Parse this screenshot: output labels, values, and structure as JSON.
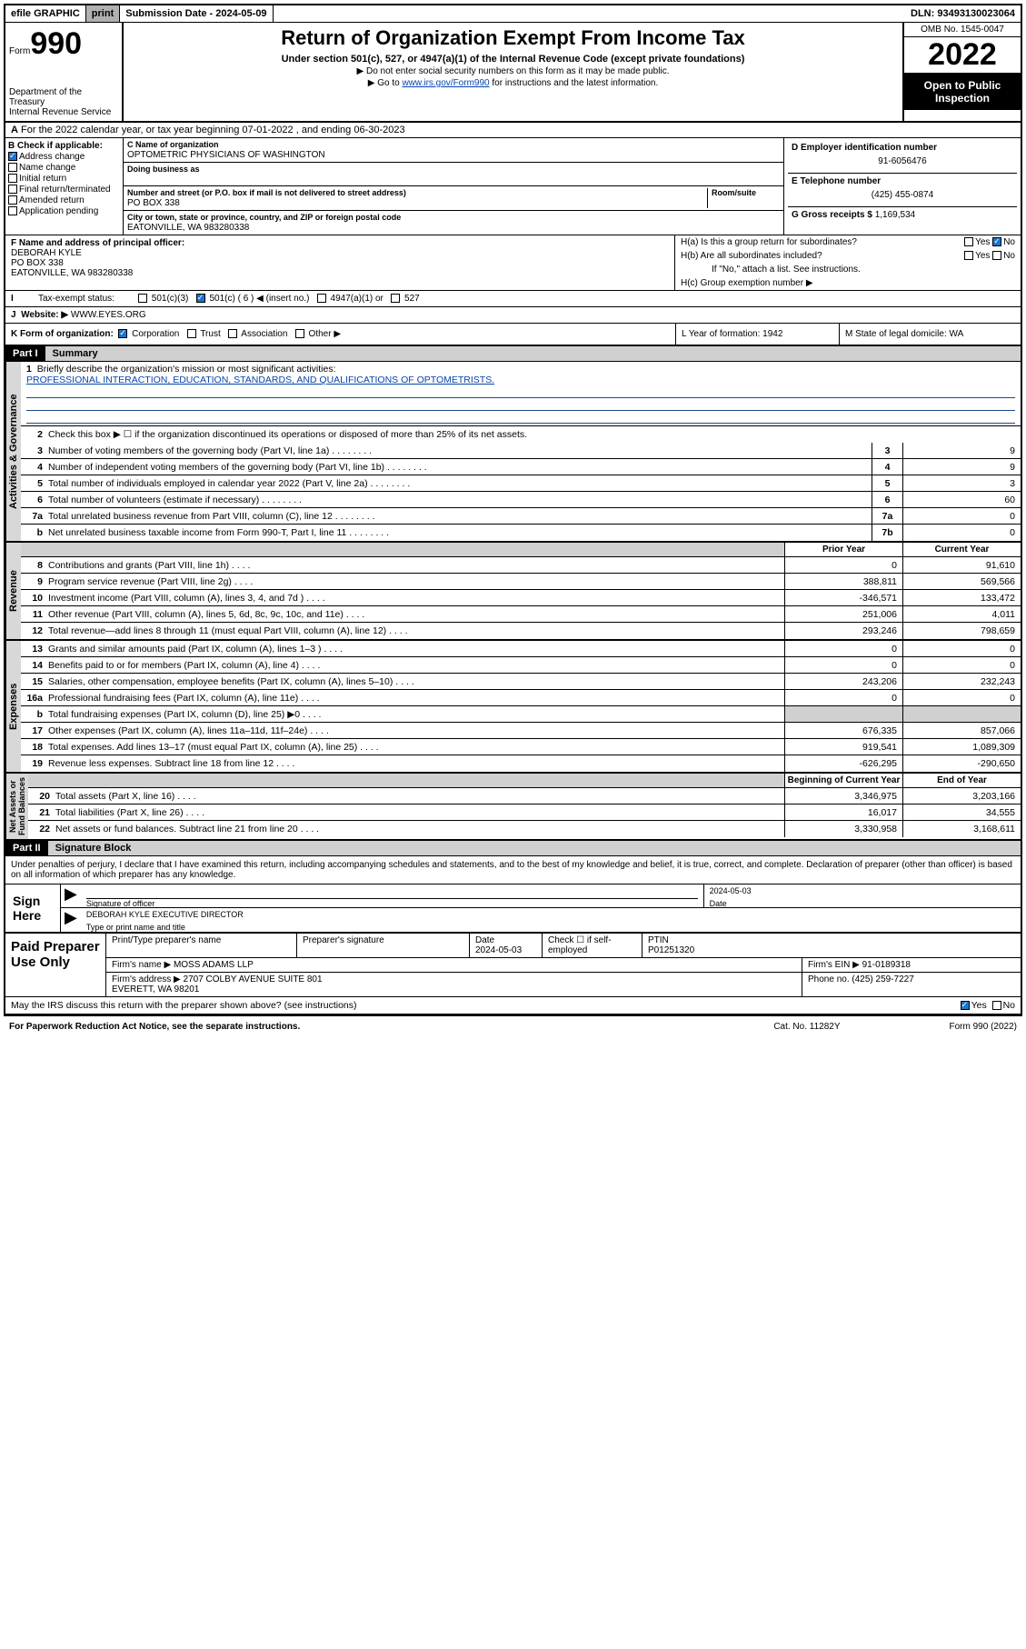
{
  "topbar": {
    "efile": "efile GRAPHIC",
    "print": "print",
    "subdate_label": "Submission Date - ",
    "subdate": "2024-05-09",
    "dln_label": "DLN: ",
    "dln": "93493130023064"
  },
  "header": {
    "form_label": "Form",
    "form_num": "990",
    "dept": "Department of the Treasury\nInternal Revenue Service",
    "title": "Return of Organization Exempt From Income Tax",
    "subtitle": "Under section 501(c), 527, or 4947(a)(1) of the Internal Revenue Code (except private foundations)",
    "instr1": "▶ Do not enter social security numbers on this form as it may be made public.",
    "instr2_pre": "▶ Go to ",
    "instr2_link": "www.irs.gov/Form990",
    "instr2_post": " for instructions and the latest information.",
    "omb": "OMB No. 1545-0047",
    "year": "2022",
    "open_pub": "Open to Public Inspection"
  },
  "rowA": "For the 2022 calendar year, or tax year beginning 07-01-2022    , and ending 06-30-2023",
  "boxB": {
    "hdr": "B Check if applicable:",
    "items": [
      "Address change",
      "Name change",
      "Initial return",
      "Final return/terminated",
      "Amended return",
      "Application pending"
    ],
    "checked_idx": 0
  },
  "boxC": {
    "name_lbl": "C Name of organization",
    "name": "OPTOMETRIC PHYSICIANS OF WASHINGTON",
    "dba_lbl": "Doing business as",
    "dba": "",
    "addr_lbl": "Number and street (or P.O. box if mail is not delivered to street address)",
    "room_lbl": "Room/suite",
    "addr": "PO BOX 338",
    "city_lbl": "City or town, state or province, country, and ZIP or foreign postal code",
    "city": "EATONVILLE, WA  983280338"
  },
  "boxD": {
    "ein_lbl": "D Employer identification number",
    "ein": "91-6056476",
    "phone_lbl": "E Telephone number",
    "phone": "(425) 455-0874",
    "gross_lbl": "G Gross receipts $ ",
    "gross": "1,169,534"
  },
  "boxF": {
    "lbl": "F  Name and address of principal officer:",
    "name": "DEBORAH KYLE",
    "addr1": "PO BOX 338",
    "addr2": "EATONVILLE, WA  983280338"
  },
  "boxH": {
    "ha": "H(a)  Is this a group return for subordinates?",
    "hb": "H(b)  Are all subordinates included?",
    "hb_note": "If \"No,\" attach a list. See instructions.",
    "hc": "H(c)  Group exemption number ▶",
    "yes": "Yes",
    "no": "No"
  },
  "rowI": {
    "lbl": "Tax-exempt status:",
    "opts": [
      "501(c)(3)",
      "501(c) ( 6 ) ◀ (insert no.)",
      "4947(a)(1) or",
      "527"
    ],
    "checked_idx": 1
  },
  "rowJ": {
    "lbl": "Website: ▶",
    "val": "WWW.EYES.ORG"
  },
  "rowK": {
    "lbl": "K Form of organization:",
    "opts": [
      "Corporation",
      "Trust",
      "Association",
      "Other ▶"
    ],
    "checked_idx": 0,
    "L": "L Year of formation: 1942",
    "M": "M State of legal domicile: WA"
  },
  "part1": {
    "hdr": "Part I",
    "title": "Summary",
    "line1_lbl": "Briefly describe the organization's mission or most significant activities:",
    "line1_val": "PROFESSIONAL INTERACTION, EDUCATION, STANDARDS, AND QUALIFICATIONS OF OPTOMETRISTS.",
    "line2": "Check this box ▶ ☐  if the organization discontinued its operations or disposed of more than 25% of its net assets.",
    "gov_lines": [
      {
        "n": "3",
        "d": "Number of voting members of the governing body (Part VI, line 1a)",
        "b": "3",
        "v": "9"
      },
      {
        "n": "4",
        "d": "Number of independent voting members of the governing body (Part VI, line 1b)",
        "b": "4",
        "v": "9"
      },
      {
        "n": "5",
        "d": "Total number of individuals employed in calendar year 2022 (Part V, line 2a)",
        "b": "5",
        "v": "3"
      },
      {
        "n": "6",
        "d": "Total number of volunteers (estimate if necessary)",
        "b": "6",
        "v": "60"
      },
      {
        "n": "7a",
        "d": "Total unrelated business revenue from Part VIII, column (C), line 12",
        "b": "7a",
        "v": "0"
      },
      {
        "n": "b",
        "d": "Net unrelated business taxable income from Form 990-T, Part I, line 11",
        "b": "7b",
        "v": "0"
      }
    ],
    "col_hdrs": {
      "prior": "Prior Year",
      "current": "Current Year"
    },
    "rev_lines": [
      {
        "n": "8",
        "d": "Contributions and grants (Part VIII, line 1h)",
        "p": "0",
        "c": "91,610"
      },
      {
        "n": "9",
        "d": "Program service revenue (Part VIII, line 2g)",
        "p": "388,811",
        "c": "569,566"
      },
      {
        "n": "10",
        "d": "Investment income (Part VIII, column (A), lines 3, 4, and 7d )",
        "p": "-346,571",
        "c": "133,472"
      },
      {
        "n": "11",
        "d": "Other revenue (Part VIII, column (A), lines 5, 6d, 8c, 9c, 10c, and 11e)",
        "p": "251,006",
        "c": "4,011"
      },
      {
        "n": "12",
        "d": "Total revenue—add lines 8 through 11 (must equal Part VIII, column (A), line 12)",
        "p": "293,246",
        "c": "798,659"
      }
    ],
    "exp_lines": [
      {
        "n": "13",
        "d": "Grants and similar amounts paid (Part IX, column (A), lines 1–3 )",
        "p": "0",
        "c": "0"
      },
      {
        "n": "14",
        "d": "Benefits paid to or for members (Part IX, column (A), line 4)",
        "p": "0",
        "c": "0"
      },
      {
        "n": "15",
        "d": "Salaries, other compensation, employee benefits (Part IX, column (A), lines 5–10)",
        "p": "243,206",
        "c": "232,243"
      },
      {
        "n": "16a",
        "d": "Professional fundraising fees (Part IX, column (A), line 11e)",
        "p": "0",
        "c": "0"
      },
      {
        "n": "b",
        "d": "Total fundraising expenses (Part IX, column (D), line 25) ▶0",
        "p": "",
        "c": "",
        "shaded": true
      },
      {
        "n": "17",
        "d": "Other expenses (Part IX, column (A), lines 11a–11d, 11f–24e)",
        "p": "676,335",
        "c": "857,066"
      },
      {
        "n": "18",
        "d": "Total expenses. Add lines 13–17 (must equal Part IX, column (A), line 25)",
        "p": "919,541",
        "c": "1,089,309"
      },
      {
        "n": "19",
        "d": "Revenue less expenses. Subtract line 18 from line 12",
        "p": "-626,295",
        "c": "-290,650"
      }
    ],
    "na_hdrs": {
      "beg": "Beginning of Current Year",
      "end": "End of Year"
    },
    "na_lines": [
      {
        "n": "20",
        "d": "Total assets (Part X, line 16)",
        "p": "3,346,975",
        "c": "3,203,166"
      },
      {
        "n": "21",
        "d": "Total liabilities (Part X, line 26)",
        "p": "16,017",
        "c": "34,555"
      },
      {
        "n": "22",
        "d": "Net assets or fund balances. Subtract line 21 from line 20",
        "p": "3,330,958",
        "c": "3,168,611"
      }
    ],
    "vlabels": {
      "gov": "Activities & Governance",
      "rev": "Revenue",
      "exp": "Expenses",
      "na": "Net Assets or\nFund Balances"
    }
  },
  "part2": {
    "hdr": "Part II",
    "title": "Signature Block",
    "decl": "Under penalties of perjury, I declare that I have examined this return, including accompanying schedules and statements, and to the best of my knowledge and belief, it is true, correct, and complete. Declaration of preparer (other than officer) is based on all information of which preparer has any knowledge.",
    "sign_here": "Sign Here",
    "sig_officer_lbl": "Signature of officer",
    "sig_date": "2024-05-03",
    "date_lbl": "Date",
    "officer_name": "DEBORAH KYLE  EXECUTIVE DIRECTOR",
    "officer_lbl": "Type or print name and title",
    "paid_prep": "Paid Preparer Use Only",
    "prep_name_lbl": "Print/Type preparer's name",
    "prep_sig_lbl": "Preparer's signature",
    "prep_date_lbl": "Date",
    "prep_date": "2024-05-03",
    "self_emp": "Check ☐ if self-employed",
    "ptin_lbl": "PTIN",
    "ptin": "P01251320",
    "firm_name_lbl": "Firm's name      ▶",
    "firm_name": "MOSS ADAMS LLP",
    "firm_ein_lbl": "Firm's EIN ▶",
    "firm_ein": "91-0189318",
    "firm_addr_lbl": "Firm's address ▶",
    "firm_addr": "2707 COLBY AVENUE SUITE 801\nEVERETT, WA  98201",
    "firm_phone_lbl": "Phone no.",
    "firm_phone": "(425) 259-7227",
    "may_irs": "May the IRS discuss this return with the preparer shown above? (see instructions)",
    "may_yes": "Yes",
    "may_no": "No"
  },
  "footer": {
    "pra": "For Paperwork Reduction Act Notice, see the separate instructions.",
    "cat": "Cat. No. 11282Y",
    "form": "Form 990 (2022)"
  },
  "colors": {
    "link": "#0645ad",
    "checked": "#1a75cf",
    "shade": "#d0d0d0"
  }
}
